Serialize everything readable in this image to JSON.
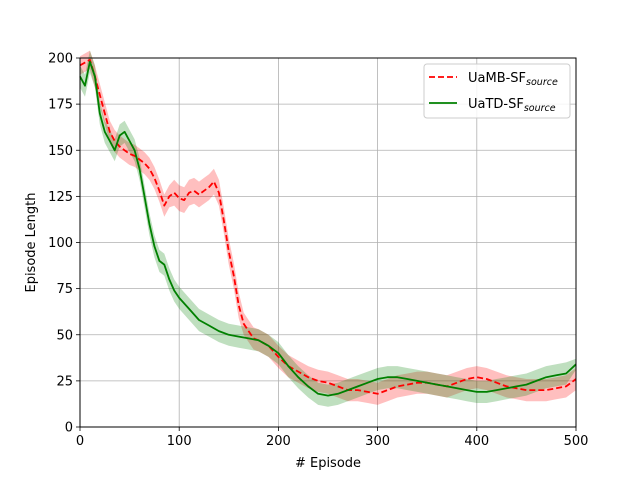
{
  "chart_data": {
    "type": "line",
    "xlabel": "# Episode",
    "ylabel": "Episode Length",
    "xlim": [
      0,
      500
    ],
    "ylim": [
      0,
      200
    ],
    "xticks": [
      0,
      100,
      200,
      300,
      400,
      500
    ],
    "yticks": [
      0,
      25,
      50,
      75,
      100,
      125,
      150,
      175,
      200
    ],
    "grid": true,
    "legend_position": "top-right",
    "series": [
      {
        "name": "UaMB-SF",
        "name_subscript": "source",
        "color": "#ff0000",
        "line_style": "dashed",
        "x": [
          0,
          10,
          15,
          20,
          25,
          30,
          35,
          40,
          45,
          50,
          55,
          60,
          65,
          70,
          75,
          80,
          85,
          90,
          95,
          100,
          105,
          110,
          115,
          120,
          125,
          130,
          135,
          140,
          145,
          150,
          155,
          160,
          165,
          170,
          175,
          180,
          190,
          200,
          210,
          220,
          230,
          240,
          250,
          260,
          270,
          280,
          290,
          300,
          310,
          320,
          330,
          340,
          350,
          360,
          370,
          380,
          390,
          400,
          410,
          420,
          430,
          440,
          450,
          460,
          470,
          480,
          490,
          500
        ],
        "y": [
          196,
          199,
          190,
          180,
          170,
          160,
          155,
          152,
          150,
          148,
          147,
          145,
          143,
          140,
          135,
          128,
          120,
          125,
          127,
          124,
          123,
          127,
          128,
          126,
          128,
          130,
          133,
          127,
          112,
          95,
          82,
          66,
          56,
          52,
          48,
          47,
          44,
          38,
          33,
          30,
          27,
          25,
          24,
          22,
          20,
          20,
          19,
          18,
          20,
          22,
          23,
          24,
          24,
          23,
          22,
          24,
          26,
          27,
          26,
          24,
          22,
          21,
          20,
          20,
          20,
          21,
          22,
          26
        ],
        "band_upper": [
          201,
          204,
          196,
          186,
          176,
          166,
          161,
          158,
          156,
          154,
          153,
          151,
          149,
          146,
          141,
          134,
          126,
          131,
          134,
          131,
          130,
          134,
          135,
          133,
          135,
          137,
          140,
          134,
          119,
          102,
          89,
          73,
          62,
          58,
          54,
          53,
          50,
          44,
          39,
          36,
          33,
          31,
          30,
          28,
          26,
          26,
          25,
          24,
          26,
          28,
          29,
          30,
          30,
          29,
          28,
          30,
          32,
          33,
          32,
          30,
          28,
          27,
          26,
          26,
          26,
          27,
          28,
          32
        ],
        "band_lower": [
          191,
          194,
          184,
          174,
          164,
          154,
          149,
          146,
          144,
          142,
          141,
          139,
          137,
          134,
          129,
          122,
          114,
          119,
          120,
          117,
          116,
          120,
          121,
          119,
          121,
          123,
          126,
          120,
          105,
          88,
          75,
          59,
          50,
          46,
          42,
          41,
          38,
          32,
          27,
          24,
          21,
          19,
          18,
          16,
          14,
          14,
          13,
          12,
          14,
          16,
          17,
          18,
          18,
          17,
          16,
          18,
          20,
          21,
          20,
          18,
          16,
          15,
          14,
          14,
          14,
          15,
          16,
          20
        ]
      },
      {
        "name": "UaTD-SF",
        "name_subscript": "source",
        "color": "#008000",
        "line_style": "solid",
        "x": [
          0,
          5,
          10,
          15,
          20,
          25,
          30,
          35,
          40,
          45,
          50,
          55,
          60,
          65,
          70,
          75,
          80,
          85,
          90,
          95,
          100,
          110,
          120,
          130,
          140,
          150,
          160,
          170,
          180,
          190,
          200,
          210,
          220,
          230,
          240,
          250,
          260,
          270,
          280,
          290,
          300,
          310,
          320,
          330,
          340,
          350,
          360,
          370,
          380,
          390,
          400,
          410,
          420,
          430,
          440,
          450,
          460,
          470,
          480,
          490,
          500
        ],
        "y": [
          190,
          185,
          198,
          190,
          170,
          160,
          155,
          150,
          158,
          160,
          155,
          150,
          140,
          125,
          110,
          98,
          90,
          88,
          80,
          74,
          70,
          64,
          58,
          55,
          52,
          50,
          49,
          48,
          47,
          44,
          40,
          33,
          27,
          22,
          18,
          17,
          18,
          20,
          22,
          24,
          26,
          27,
          27,
          26,
          25,
          24,
          23,
          22,
          21,
          20,
          19,
          19,
          20,
          21,
          22,
          23,
          25,
          27,
          28,
          29,
          34
        ],
        "band_upper": [
          196,
          191,
          204,
          196,
          176,
          166,
          161,
          156,
          164,
          166,
          161,
          156,
          146,
          131,
          116,
          104,
          96,
          94,
          86,
          80,
          76,
          70,
          64,
          61,
          58,
          56,
          55,
          54,
          53,
          50,
          46,
          39,
          33,
          28,
          24,
          23,
          24,
          26,
          28,
          30,
          32,
          33,
          33,
          32,
          31,
          30,
          29,
          28,
          27,
          26,
          25,
          25,
          26,
          27,
          28,
          29,
          31,
          33,
          34,
          35,
          37
        ],
        "band_lower": [
          184,
          179,
          192,
          184,
          164,
          154,
          149,
          144,
          152,
          154,
          149,
          144,
          134,
          119,
          104,
          92,
          84,
          82,
          74,
          68,
          64,
          58,
          52,
          49,
          46,
          44,
          43,
          42,
          41,
          38,
          34,
          27,
          21,
          16,
          12,
          11,
          12,
          14,
          16,
          18,
          20,
          21,
          21,
          20,
          19,
          18,
          17,
          16,
          15,
          14,
          13,
          13,
          14,
          15,
          16,
          17,
          19,
          21,
          22,
          23,
          31
        ]
      }
    ]
  }
}
